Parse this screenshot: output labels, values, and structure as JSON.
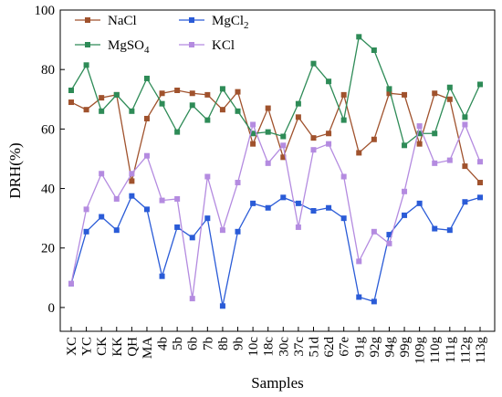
{
  "chart_data": {
    "type": "line",
    "xlabel": "Samples",
    "ylabel": "DRH(%)",
    "ylim": [
      -8,
      100
    ],
    "yticks": [
      0,
      20,
      40,
      60,
      80,
      100
    ],
    "grid": false,
    "legend_placement": "top-left",
    "categories": [
      "XC",
      "YC",
      "CK",
      "KK",
      "QH",
      "MA",
      "4b",
      "5b",
      "6b",
      "7b",
      "8b",
      "9b",
      "10c",
      "18c",
      "30c",
      "37c",
      "51d",
      "62d",
      "67e",
      "91g",
      "92g",
      "94g",
      "99g",
      "109g",
      "110g",
      "111g",
      "112g",
      "113g"
    ],
    "series": [
      {
        "name": "NaCl",
        "name_sub": "",
        "color": "#a0522d",
        "marker": "square",
        "values": [
          69,
          66.5,
          70.5,
          71.5,
          42.5,
          63.5,
          72,
          73,
          72,
          71.5,
          66.5,
          72.5,
          55,
          67,
          50.5,
          64,
          57,
          58.5,
          71.5,
          52,
          56.5,
          72,
          71.5,
          55,
          72,
          70,
          47.5,
          42
        ]
      },
      {
        "name": "MgCl",
        "name_sub": "2",
        "color": "#2a5bd7",
        "marker": "square",
        "values": [
          8,
          25.5,
          30.5,
          26,
          37.5,
          33,
          10.5,
          27,
          23.5,
          30,
          0.5,
          25.5,
          35,
          33.5,
          37,
          35,
          32.5,
          33.5,
          30,
          3.5,
          2,
          24.5,
          31,
          35,
          26.5,
          26,
          35.5,
          37
        ]
      },
      {
        "name": "MgSO",
        "name_sub": "4",
        "color": "#2e8b57",
        "marker": "square",
        "values": [
          73,
          81.5,
          66,
          71.5,
          66,
          77,
          68.5,
          59,
          68,
          63,
          73.5,
          66,
          58.5,
          59,
          57.5,
          68.5,
          82,
          76,
          63,
          91,
          86.5,
          73.5,
          54.5,
          58.5,
          58.5,
          74,
          64,
          75
        ]
      },
      {
        "name": "KCl",
        "name_sub": "",
        "color": "#b48be0",
        "marker": "square",
        "values": [
          8,
          33,
          45,
          36.5,
          45,
          51,
          36,
          36.5,
          3,
          44,
          26,
          42,
          61.5,
          48.5,
          54.5,
          27,
          53,
          55,
          44,
          15.5,
          25.5,
          21.5,
          39,
          61,
          48.5,
          49.5,
          61.5,
          49
        ]
      }
    ]
  }
}
